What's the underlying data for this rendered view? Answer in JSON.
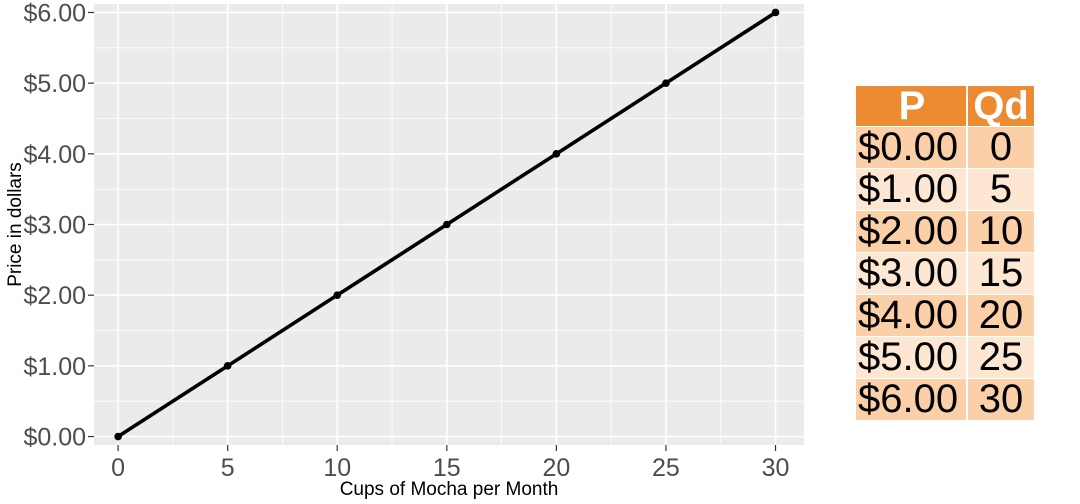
{
  "chart_data": {
    "type": "line",
    "xlabel": "Cups of Mocha per Month",
    "ylabel": "Price in dollars",
    "xlim": [
      -1.1,
      31.3
    ],
    "ylim": [
      -0.12,
      6.12
    ],
    "x_ticks": [
      0,
      5,
      10,
      15,
      20,
      25,
      30
    ],
    "x_tick_labels": [
      "0",
      "5",
      "10",
      "15",
      "20",
      "25",
      "30"
    ],
    "y_ticks": [
      0,
      1,
      2,
      3,
      4,
      5,
      6
    ],
    "y_tick_labels": [
      "$0.00",
      "$1.00",
      "$2.00",
      "$3.00",
      "$4.00",
      "$5.00",
      "$6.00"
    ],
    "grid": true,
    "series": [
      {
        "x": [
          0,
          5,
          10,
          15,
          20,
          25,
          30
        ],
        "y": [
          0,
          1,
          2,
          3,
          4,
          5,
          6
        ],
        "color": "#000000"
      }
    ]
  },
  "table": {
    "headers": [
      "P",
      "Qd"
    ],
    "rows": [
      [
        "$0.00",
        "0"
      ],
      [
        "$1.00",
        "5"
      ],
      [
        "$2.00",
        "10"
      ],
      [
        "$3.00",
        "15"
      ],
      [
        "$4.00",
        "20"
      ],
      [
        "$5.00",
        "25"
      ],
      [
        "$6.00",
        "30"
      ]
    ],
    "colors": {
      "header": "#ED8B33",
      "row_dark": "#FBCFA7",
      "row_light": "#FDE7D3"
    }
  },
  "colors": {
    "panel": "#EBEBEB",
    "grid_major": "#FFFFFF",
    "tick_label": "#4D4D4D"
  }
}
